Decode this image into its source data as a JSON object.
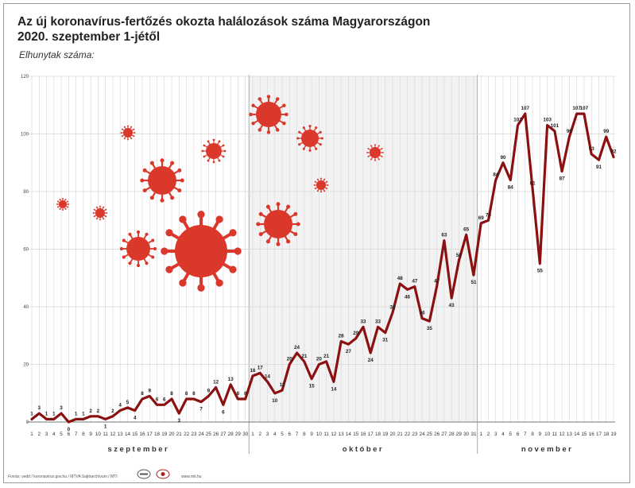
{
  "title_line1": "Az új koronavírus-fertőzés okozta halálozások száma Magyarországon",
  "title_line2": "2020. szeptember 1-jétől",
  "subtitle": "Elhunytak száma:",
  "source": "Forrás: vedd / koronavirus.gov.hu / MTVA Sajtóarchívum / MTI",
  "site": "www.mti.hu",
  "colors": {
    "line": "#8b1010",
    "virus": "#d9382b",
    "grid": "#d6d6d6",
    "month_bg": "#ececec"
  },
  "chart_data": {
    "type": "line",
    "title": "Az új koronavírus-fertőzés okozta halálozások száma Magyarországon 2020. szeptember 1-jétől",
    "ylabel": "Elhunytak száma:",
    "ylim": [
      0,
      120
    ],
    "yticks": [
      0,
      20,
      40,
      60,
      80,
      100,
      120
    ],
    "grid": true,
    "months": [
      {
        "name": "szeptember",
        "days": [
          "1",
          "2",
          "3",
          "4",
          "5",
          "6",
          "7",
          "8",
          "9",
          "10",
          "11",
          "12",
          "13",
          "14",
          "15",
          "16",
          "17",
          "18",
          "19",
          "20",
          "21",
          "22",
          "23",
          "24",
          "25",
          "26",
          "27",
          "28",
          "29",
          "30"
        ]
      },
      {
        "name": "október",
        "days": [
          "1",
          "2",
          "3",
          "4",
          "5",
          "6",
          "7",
          "8",
          "9",
          "10",
          "11",
          "12",
          "13",
          "14",
          "15",
          "16",
          "17",
          "18",
          "19",
          "20",
          "21",
          "22",
          "23",
          "24",
          "25",
          "26",
          "27",
          "28",
          "29",
          "30",
          "31"
        ]
      },
      {
        "name": "november",
        "days": [
          "1",
          "2",
          "3",
          "4",
          "5",
          "6",
          "7",
          "8",
          "9",
          "10",
          "11",
          "12",
          "13",
          "14",
          "15",
          "16",
          "17",
          "18",
          "19"
        ]
      }
    ],
    "series": [
      {
        "values": [
          1,
          3,
          1,
          1,
          3,
          0,
          1,
          1,
          2,
          2,
          1,
          2,
          4,
          5,
          4,
          8,
          9,
          6,
          6,
          8,
          3,
          8,
          8,
          7,
          9,
          12,
          6,
          13,
          8,
          8,
          16,
          17,
          14,
          10,
          11,
          20,
          24,
          21,
          15,
          20,
          21,
          14,
          28,
          27,
          29,
          33,
          24,
          33,
          31,
          38,
          48,
          46,
          47,
          36,
          35,
          47,
          63,
          43,
          56,
          65,
          51,
          69,
          70,
          84,
          90,
          84,
          103,
          107,
          81,
          55,
          103,
          101,
          87,
          99,
          107,
          107,
          93,
          91,
          99,
          92
        ],
        "labels": [
          "1",
          "3",
          "1",
          "1",
          "3",
          "0",
          "1",
          "1",
          "2",
          "2",
          "1",
          "2",
          "4",
          "5",
          "4",
          "8",
          "9",
          "6",
          "6",
          "8",
          "3",
          "8",
          "8",
          "7",
          "9",
          "12",
          "6",
          "13",
          "8",
          "8",
          "16",
          "17",
          "14",
          "10",
          "11",
          "20",
          "24",
          "21",
          "15",
          "20",
          "21",
          "14",
          "28",
          "27",
          "29",
          "33",
          "24",
          "33",
          "31",
          "38",
          "48",
          "46",
          "47",
          "36",
          "35",
          "47",
          "63",
          "43",
          "56",
          "65",
          "51",
          "69",
          "70",
          "84",
          "90",
          "84",
          "103",
          "107",
          "81",
          "55",
          "103",
          "101",
          "87",
          "99",
          "107",
          "107",
          "93",
          "91",
          "99",
          "92"
        ]
      }
    ]
  }
}
